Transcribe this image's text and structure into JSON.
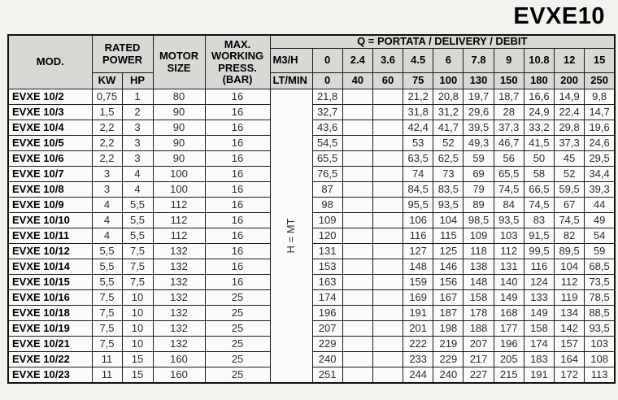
{
  "title": "EVXE10",
  "colors": {
    "header_bg": "#d8d8d5",
    "border": "#1a1a1a",
    "page_bg": "#f3f2ef"
  },
  "table": {
    "headers": {
      "mod": "MOD.",
      "rated_power": "RATED POWER",
      "kw": "KW",
      "hp": "HP",
      "motor_size": "MOTOR SIZE",
      "max_working_press": "MAX. WORKING PRESS.",
      "bar": "(BAR)",
      "q_header": "Q = PORTATA / DELIVERY / DEBIT",
      "m3h_label": "M3/H",
      "ltmin_label": "LT/MIN",
      "h_mt_label": "H = MT",
      "m3h_values": [
        "0",
        "2.4",
        "3.6",
        "4.5",
        "6",
        "7.8",
        "9",
        "10.8",
        "12",
        "15"
      ],
      "ltmin_values": [
        "0",
        "40",
        "60",
        "75",
        "100",
        "130",
        "150",
        "180",
        "200",
        "250"
      ]
    },
    "rows": [
      {
        "mod": "EVXE 10/2",
        "kw": "0,75",
        "hp": "1",
        "motor_size": "80",
        "press": "16",
        "h": [
          "21,8",
          "",
          "",
          "21,2",
          "20,8",
          "19,7",
          "18,7",
          "16,6",
          "14,9",
          "9,8"
        ]
      },
      {
        "mod": "EVXE 10/3",
        "kw": "1,5",
        "hp": "2",
        "motor_size": "90",
        "press": "16",
        "h": [
          "32,7",
          "",
          "",
          "31,8",
          "31,2",
          "29,6",
          "28",
          "24,9",
          "22,4",
          "14,7"
        ]
      },
      {
        "mod": "EVXE 10/4",
        "kw": "2,2",
        "hp": "3",
        "motor_size": "90",
        "press": "16",
        "h": [
          "43,6",
          "",
          "",
          "42,4",
          "41,7",
          "39,5",
          "37,3",
          "33,2",
          "29,8",
          "19,6"
        ]
      },
      {
        "mod": "EVXE 10/5",
        "kw": "2,2",
        "hp": "3",
        "motor_size": "90",
        "press": "16",
        "h": [
          "54,5",
          "",
          "",
          "53",
          "52",
          "49,3",
          "46,7",
          "41,5",
          "37,3",
          "24,6"
        ]
      },
      {
        "mod": "EVXE 10/6",
        "kw": "2,2",
        "hp": "3",
        "motor_size": "90",
        "press": "16",
        "h": [
          "65,5",
          "",
          "",
          "63,5",
          "62,5",
          "59",
          "56",
          "50",
          "45",
          "29,5"
        ]
      },
      {
        "mod": "EVXE 10/7",
        "kw": "3",
        "hp": "4",
        "motor_size": "100",
        "press": "16",
        "h": [
          "76,5",
          "",
          "",
          "74",
          "73",
          "69",
          "65,5",
          "58",
          "52",
          "34,4"
        ]
      },
      {
        "mod": "EVXE 10/8",
        "kw": "3",
        "hp": "4",
        "motor_size": "100",
        "press": "16",
        "h": [
          "87",
          "",
          "",
          "84,5",
          "83,5",
          "79",
          "74,5",
          "66,5",
          "59,5",
          "39,3"
        ]
      },
      {
        "mod": "EVXE 10/9",
        "kw": "4",
        "hp": "5,5",
        "motor_size": "112",
        "press": "16",
        "h": [
          "98",
          "",
          "",
          "95,5",
          "93,5",
          "89",
          "84",
          "74,5",
          "67",
          "44"
        ]
      },
      {
        "mod": "EVXE 10/10",
        "kw": "4",
        "hp": "5,5",
        "motor_size": "112",
        "press": "16",
        "h": [
          "109",
          "",
          "",
          "106",
          "104",
          "98,5",
          "93,5",
          "83",
          "74,5",
          "49"
        ]
      },
      {
        "mod": "EVXE 10/11",
        "kw": "4",
        "hp": "5,5",
        "motor_size": "112",
        "press": "16",
        "h": [
          "120",
          "",
          "",
          "116",
          "115",
          "109",
          "103",
          "91,5",
          "82",
          "54"
        ]
      },
      {
        "mod": "EVXE 10/12",
        "kw": "5,5",
        "hp": "7,5",
        "motor_size": "132",
        "press": "16",
        "h": [
          "131",
          "",
          "",
          "127",
          "125",
          "118",
          "112",
          "99,5",
          "89,5",
          "59"
        ]
      },
      {
        "mod": "EVXE 10/14",
        "kw": "5,5",
        "hp": "7,5",
        "motor_size": "132",
        "press": "16",
        "h": [
          "153",
          "",
          "",
          "148",
          "146",
          "138",
          "131",
          "116",
          "104",
          "68,5"
        ]
      },
      {
        "mod": "EVXE 10/15",
        "kw": "5,5",
        "hp": "7,5",
        "motor_size": "132",
        "press": "16",
        "h": [
          "163",
          "",
          "",
          "159",
          "156",
          "148",
          "140",
          "124",
          "112",
          "73,5"
        ]
      },
      {
        "mod": "EVXE 10/16",
        "kw": "7,5",
        "hp": "10",
        "motor_size": "132",
        "press": "25",
        "h": [
          "174",
          "",
          "",
          "169",
          "167",
          "158",
          "149",
          "133",
          "119",
          "78,5"
        ]
      },
      {
        "mod": "EVXE 10/18",
        "kw": "7,5",
        "hp": "10",
        "motor_size": "132",
        "press": "25",
        "h": [
          "196",
          "",
          "",
          "191",
          "187",
          "178",
          "168",
          "149",
          "134",
          "88,5"
        ]
      },
      {
        "mod": "EVXE 10/19",
        "kw": "7,5",
        "hp": "10",
        "motor_size": "132",
        "press": "25",
        "h": [
          "207",
          "",
          "",
          "201",
          "198",
          "188",
          "177",
          "158",
          "142",
          "93,5"
        ]
      },
      {
        "mod": "EVXE 10/21",
        "kw": "7,5",
        "hp": "10",
        "motor_size": "132",
        "press": "25",
        "h": [
          "229",
          "",
          "",
          "222",
          "219",
          "207",
          "196",
          "174",
          "157",
          "103"
        ]
      },
      {
        "mod": "EVXE 10/22",
        "kw": "11",
        "hp": "15",
        "motor_size": "160",
        "press": "25",
        "h": [
          "240",
          "",
          "",
          "233",
          "229",
          "217",
          "205",
          "183",
          "164",
          "108"
        ]
      },
      {
        "mod": "EVXE 10/23",
        "kw": "11",
        "hp": "15",
        "motor_size": "160",
        "press": "25",
        "h": [
          "251",
          "",
          "",
          "244",
          "240",
          "227",
          "215",
          "191",
          "172",
          "113"
        ]
      }
    ]
  }
}
